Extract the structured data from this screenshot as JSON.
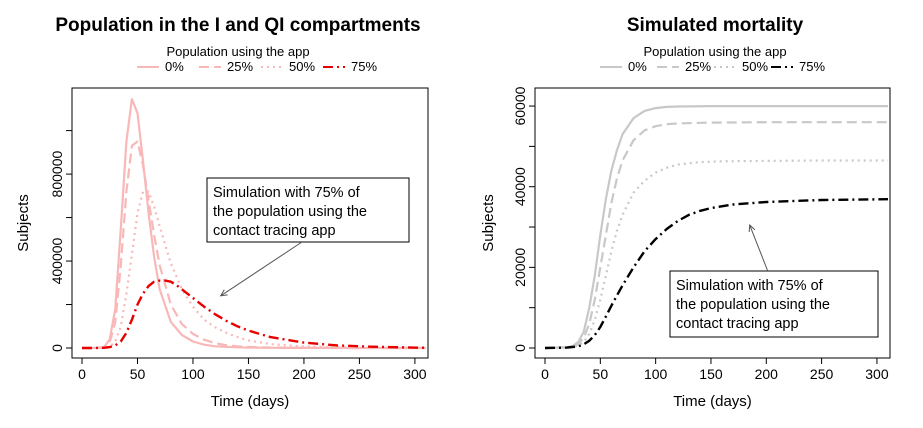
{
  "chart_data": [
    {
      "type": "line",
      "title": "Population in the I and QI compartments",
      "xlabel": "Time (days)",
      "ylabel": "Subjects",
      "xlim": [
        0,
        310
      ],
      "ylim": [
        0,
        1150000
      ],
      "xticks": [
        "0",
        "50",
        "100",
        "150",
        "200",
        "250",
        "300"
      ],
      "yticks": [
        "0",
        "400000",
        "800000"
      ],
      "y_minor_ticks": [
        200000,
        600000,
        1000000
      ],
      "legend_title": "Population using the app",
      "legend_position": "top-center",
      "colors": {
        "light": "#f8b8b8",
        "dark": "#e80000"
      },
      "series": [
        {
          "name": "0%",
          "style": "solid",
          "emphasis": "light",
          "x": [
            0,
            10,
            20,
            25,
            30,
            35,
            40,
            45,
            50,
            55,
            60,
            65,
            70,
            80,
            90,
            100,
            110,
            120,
            130,
            140,
            150,
            170,
            200,
            250,
            310
          ],
          "y": [
            0,
            0,
            4000,
            40000,
            180000,
            550000,
            950000,
            1145000,
            1080000,
            860000,
            620000,
            420000,
            270000,
            120000,
            60000,
            30000,
            15000,
            8000,
            5000,
            3000,
            2000,
            1000,
            500,
            0,
            0
          ]
        },
        {
          "name": "25%",
          "style": "dashed",
          "emphasis": "light",
          "x": [
            0,
            10,
            20,
            25,
            30,
            35,
            40,
            45,
            50,
            55,
            60,
            65,
            70,
            80,
            90,
            100,
            110,
            120,
            130,
            140,
            150,
            170,
            200,
            250,
            310
          ],
          "y": [
            0,
            0,
            3000,
            25000,
            120000,
            380000,
            720000,
            930000,
            950000,
            840000,
            680000,
            520000,
            380000,
            200000,
            110000,
            65000,
            38000,
            22000,
            13000,
            8000,
            5000,
            2000,
            800,
            200,
            0
          ]
        },
        {
          "name": "50%",
          "style": "dotted",
          "emphasis": "light",
          "x": [
            0,
            10,
            20,
            25,
            30,
            35,
            40,
            45,
            50,
            55,
            60,
            65,
            70,
            80,
            90,
            100,
            110,
            120,
            130,
            140,
            150,
            170,
            200,
            250,
            310
          ],
          "y": [
            0,
            0,
            1000,
            6000,
            30000,
            100000,
            250000,
            430000,
            620000,
            720000,
            720000,
            650000,
            560000,
            390000,
            270000,
            190000,
            130000,
            95000,
            70000,
            50000,
            35000,
            18000,
            7000,
            1500,
            0
          ]
        },
        {
          "name": "75%",
          "style": "dashdot",
          "emphasis": "dark",
          "x": [
            0,
            10,
            20,
            25,
            30,
            35,
            40,
            45,
            50,
            55,
            60,
            65,
            70,
            75,
            80,
            85,
            90,
            100,
            110,
            120,
            130,
            140,
            150,
            170,
            200,
            230,
            260,
            310
          ],
          "y": [
            0,
            0,
            1000,
            4000,
            12000,
            30000,
            70000,
            130000,
            200000,
            250000,
            285000,
            305000,
            310000,
            310000,
            305000,
            290000,
            270000,
            230000,
            190000,
            155000,
            125000,
            100000,
            80000,
            50000,
            25000,
            12000,
            6000,
            1000
          ]
        }
      ],
      "annotation": {
        "lines": [
          "Simulation with 75% of",
          "the population using the",
          "contact tracing app"
        ],
        "arrow_to": [
          125,
          240000
        ]
      }
    },
    {
      "type": "line",
      "title": "Simulated mortality",
      "xlabel": "Time (days)",
      "ylabel": "Subjects",
      "xlim": [
        0,
        310
      ],
      "ylim": [
        0,
        62000
      ],
      "xticks": [
        "0",
        "50",
        "100",
        "150",
        "200",
        "250",
        "300"
      ],
      "yticks": [
        "0",
        "20000",
        "40000",
        "60000"
      ],
      "y_minor_ticks": [
        10000,
        30000,
        50000
      ],
      "legend_title": "Population using the app",
      "legend_position": "top-center",
      "colors": {
        "light": "#c8c8c8",
        "dark": "#000000"
      },
      "series": [
        {
          "name": "0%",
          "style": "solid",
          "emphasis": "light",
          "x": [
            0,
            20,
            25,
            30,
            35,
            40,
            45,
            50,
            55,
            60,
            65,
            70,
            80,
            90,
            100,
            110,
            120,
            150,
            200,
            250,
            310
          ],
          "y": [
            0,
            200,
            500,
            1500,
            4000,
            10000,
            18000,
            28000,
            37000,
            44000,
            49000,
            53000,
            57000,
            58800,
            59500,
            59800,
            59900,
            60000,
            60000,
            60000,
            60000
          ]
        },
        {
          "name": "25%",
          "style": "dashed",
          "emphasis": "light",
          "x": [
            0,
            20,
            25,
            30,
            35,
            40,
            45,
            50,
            55,
            60,
            65,
            70,
            80,
            90,
            100,
            110,
            120,
            150,
            200,
            250,
            310
          ],
          "y": [
            0,
            150,
            400,
            1000,
            2500,
            6000,
            12000,
            20000,
            28000,
            36000,
            42000,
            46500,
            51500,
            54000,
            55000,
            55500,
            55700,
            55900,
            56000,
            56000,
            56000
          ]
        },
        {
          "name": "50%",
          "style": "dotted",
          "emphasis": "light",
          "x": [
            0,
            20,
            25,
            30,
            35,
            40,
            45,
            50,
            55,
            60,
            65,
            70,
            80,
            90,
            100,
            110,
            120,
            140,
            160,
            200,
            250,
            310
          ],
          "y": [
            0,
            100,
            250,
            600,
            1500,
            3500,
            7000,
            12000,
            18000,
            24000,
            29000,
            33000,
            38500,
            41500,
            43500,
            44700,
            45500,
            46100,
            46300,
            46400,
            46500,
            46500
          ]
        },
        {
          "name": "75%",
          "style": "dashdot",
          "emphasis": "dark",
          "x": [
            0,
            20,
            30,
            35,
            40,
            45,
            50,
            55,
            60,
            65,
            70,
            80,
            90,
            100,
            110,
            120,
            130,
            140,
            150,
            170,
            200,
            250,
            310
          ],
          "y": [
            0,
            100,
            400,
            900,
            1800,
            3200,
            5200,
            7800,
            10500,
            13000,
            15500,
            20000,
            24000,
            27000,
            29500,
            31500,
            33000,
            34000,
            34700,
            35600,
            36200,
            36700,
            36900
          ]
        }
      ],
      "annotation": {
        "lines": [
          "Simulation with 75% of",
          "the population using the",
          "contact tracing app"
        ],
        "arrow_to": [
          185,
          30500
        ]
      }
    }
  ]
}
